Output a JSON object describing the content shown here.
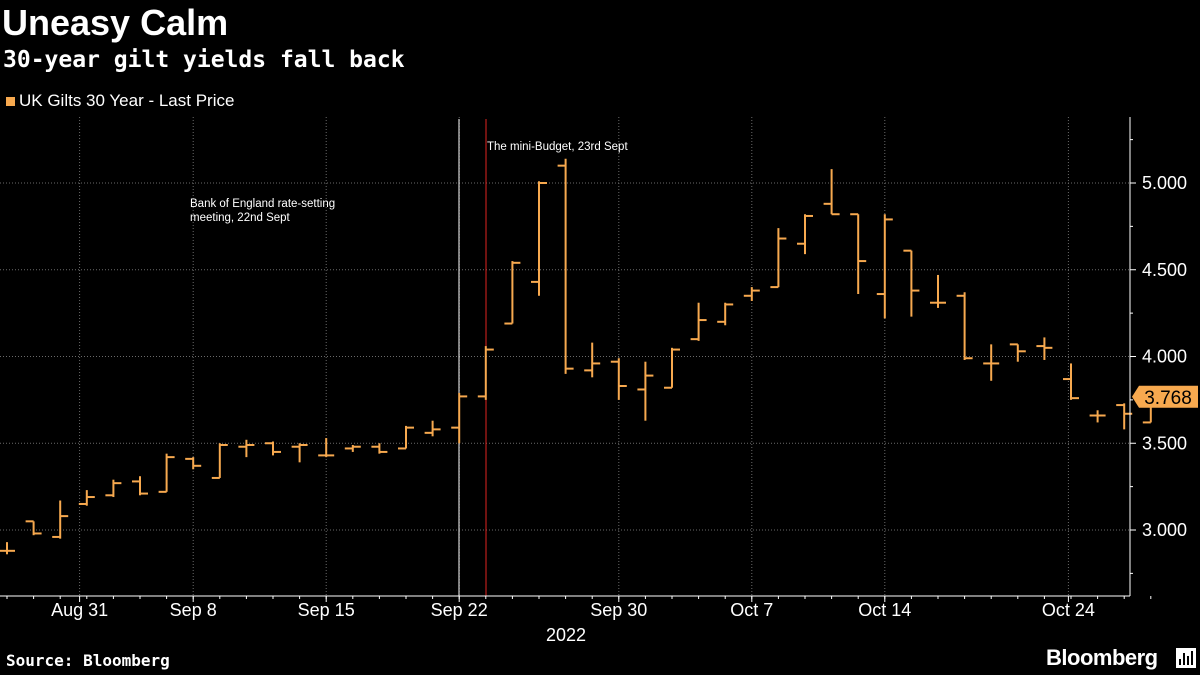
{
  "header": {
    "title": "Uneasy Calm",
    "subtitle": "30-year gilt yields fall back"
  },
  "footer": {
    "source": "Source: Bloomberg",
    "brand": "Bloomberg"
  },
  "chart_data": {
    "type": "ohlc",
    "title": "Uneasy Calm",
    "subtitle": "30-year gilt yields fall back",
    "legend": {
      "label": "UK Gilts 30 Year - Last Price",
      "position": "top-left",
      "color": "#f7a94f"
    },
    "series_color": "#f7a94f",
    "background": "#000000",
    "grid": true,
    "y_axis": {
      "position": "right",
      "ylim": [
        2.65,
        5.35
      ],
      "ticks": [
        3.0,
        3.5,
        4.0,
        4.5,
        5.0
      ],
      "tick_labels": [
        "3.000",
        "3.500",
        "4.000",
        "4.500",
        "5.000"
      ]
    },
    "x_axis": {
      "tick_labels": [
        "Aug 31",
        "Sep 8",
        "Sep 15",
        "Sep 22",
        "Sep 30",
        "Oct 7",
        "Oct 14",
        "Oct 24"
      ],
      "year_label": "2022"
    },
    "last_price": {
      "value": 3.768,
      "label": "3.768",
      "color": "#f7a94f"
    },
    "annotations": [
      {
        "text_lines": [
          "Bank of England rate-setting",
          "meeting, 22nd Sept"
        ],
        "date": "Sep 22",
        "line_color": "#ffffff"
      },
      {
        "text_lines": [
          "The mini-Budget, 23rd Sept"
        ],
        "date": "Sep 23",
        "line_color": "#e0231f"
      }
    ],
    "bars": [
      {
        "date": "Aug 30",
        "open": 2.88,
        "high": 2.93,
        "low": 2.86,
        "close": 2.88
      },
      {
        "date": "Aug 31",
        "open": 3.05,
        "high": 3.05,
        "low": 2.97,
        "close": 2.98
      },
      {
        "date": "Sep 1",
        "open": 2.96,
        "high": 3.17,
        "low": 2.95,
        "close": 3.08
      },
      {
        "date": "Sep 2",
        "open": 3.15,
        "high": 3.23,
        "low": 3.14,
        "close": 3.19
      },
      {
        "date": "Sep 5",
        "open": 3.2,
        "high": 3.29,
        "low": 3.19,
        "close": 3.27
      },
      {
        "date": "Sep 6",
        "open": 3.28,
        "high": 3.31,
        "low": 3.2,
        "close": 3.21
      },
      {
        "date": "Sep 7",
        "open": 3.22,
        "high": 3.44,
        "low": 3.22,
        "close": 3.42
      },
      {
        "date": "Sep 8",
        "open": 3.41,
        "high": 3.42,
        "low": 3.35,
        "close": 3.37
      },
      {
        "date": "Sep 9",
        "open": 3.3,
        "high": 3.5,
        "low": 3.3,
        "close": 3.49
      },
      {
        "date": "Sep 12",
        "open": 3.48,
        "high": 3.52,
        "low": 3.42,
        "close": 3.49
      },
      {
        "date": "Sep 13",
        "open": 3.5,
        "high": 3.51,
        "low": 3.43,
        "close": 3.45
      },
      {
        "date": "Sep 14",
        "open": 3.48,
        "high": 3.5,
        "low": 3.39,
        "close": 3.49
      },
      {
        "date": "Sep 15",
        "open": 3.43,
        "high": 3.53,
        "low": 3.42,
        "close": 3.43
      },
      {
        "date": "Sep 16",
        "open": 3.47,
        "high": 3.49,
        "low": 3.45,
        "close": 3.48
      },
      {
        "date": "Sep 19",
        "open": 3.48,
        "high": 3.5,
        "low": 3.44,
        "close": 3.45
      },
      {
        "date": "Sep 20",
        "open": 3.47,
        "high": 3.6,
        "low": 3.47,
        "close": 3.59
      },
      {
        "date": "Sep 21",
        "open": 3.56,
        "high": 3.63,
        "low": 3.54,
        "close": 3.58
      },
      {
        "date": "Sep 22",
        "open": 3.59,
        "high": 3.79,
        "low": 3.5,
        "close": 3.77
      },
      {
        "date": "Sep 23",
        "open": 3.77,
        "high": 4.06,
        "low": 3.75,
        "close": 4.04
      },
      {
        "date": "Sep 26",
        "open": 4.19,
        "high": 4.55,
        "low": 4.19,
        "close": 4.54
      },
      {
        "date": "Sep 27",
        "open": 4.43,
        "high": 5.01,
        "low": 4.35,
        "close": 5.0
      },
      {
        "date": "Sep 28",
        "open": 5.1,
        "high": 5.14,
        "low": 3.9,
        "close": 3.93
      },
      {
        "date": "Sep 29",
        "open": 3.92,
        "high": 4.08,
        "low": 3.88,
        "close": 3.96
      },
      {
        "date": "Sep 30",
        "open": 3.97,
        "high": 3.99,
        "low": 3.75,
        "close": 3.83
      },
      {
        "date": "Oct 3",
        "open": 3.81,
        "high": 3.97,
        "low": 3.63,
        "close": 3.89
      },
      {
        "date": "Oct 4",
        "open": 3.82,
        "high": 4.05,
        "low": 3.82,
        "close": 4.04
      },
      {
        "date": "Oct 5",
        "open": 4.1,
        "high": 4.31,
        "low": 4.09,
        "close": 4.21
      },
      {
        "date": "Oct 6",
        "open": 4.2,
        "high": 4.31,
        "low": 4.18,
        "close": 4.3
      },
      {
        "date": "Oct 7",
        "open": 4.35,
        "high": 4.4,
        "low": 4.32,
        "close": 4.38
      },
      {
        "date": "Oct 10",
        "open": 4.4,
        "high": 4.74,
        "low": 4.4,
        "close": 4.68
      },
      {
        "date": "Oct 11",
        "open": 4.65,
        "high": 4.82,
        "low": 4.59,
        "close": 4.81
      },
      {
        "date": "Oct 12",
        "open": 4.88,
        "high": 5.08,
        "low": 4.82,
        "close": 4.82
      },
      {
        "date": "Oct 13",
        "open": 4.82,
        "high": 4.82,
        "low": 4.36,
        "close": 4.55
      },
      {
        "date": "Oct 14",
        "open": 4.36,
        "high": 4.82,
        "low": 4.22,
        "close": 4.79
      },
      {
        "date": "Oct 17",
        "open": 4.61,
        "high": 4.61,
        "low": 4.23,
        "close": 4.38
      },
      {
        "date": "Oct 18",
        "open": 4.31,
        "high": 4.47,
        "low": 4.28,
        "close": 4.31
      },
      {
        "date": "Oct 19",
        "open": 4.35,
        "high": 4.37,
        "low": 3.98,
        "close": 3.99
      },
      {
        "date": "Oct 20",
        "open": 3.96,
        "high": 4.07,
        "low": 3.86,
        "close": 3.96
      },
      {
        "date": "Oct 21",
        "open": 4.07,
        "high": 4.07,
        "low": 3.97,
        "close": 4.03
      },
      {
        "date": "Oct 24",
        "open": 4.06,
        "high": 4.11,
        "low": 3.98,
        "close": 4.05
      },
      {
        "date": "Oct 25",
        "open": 3.87,
        "high": 3.96,
        "low": 3.75,
        "close": 3.76
      },
      {
        "date": "Oct 26",
        "open": 3.66,
        "high": 3.69,
        "low": 3.62,
        "close": 3.66
      },
      {
        "date": "Oct 27",
        "open": 3.72,
        "high": 3.73,
        "low": 3.58,
        "close": 3.67
      },
      {
        "date": "Oct 28",
        "open": 3.62,
        "high": 3.77,
        "low": 3.62,
        "close": 3.768
      }
    ]
  }
}
